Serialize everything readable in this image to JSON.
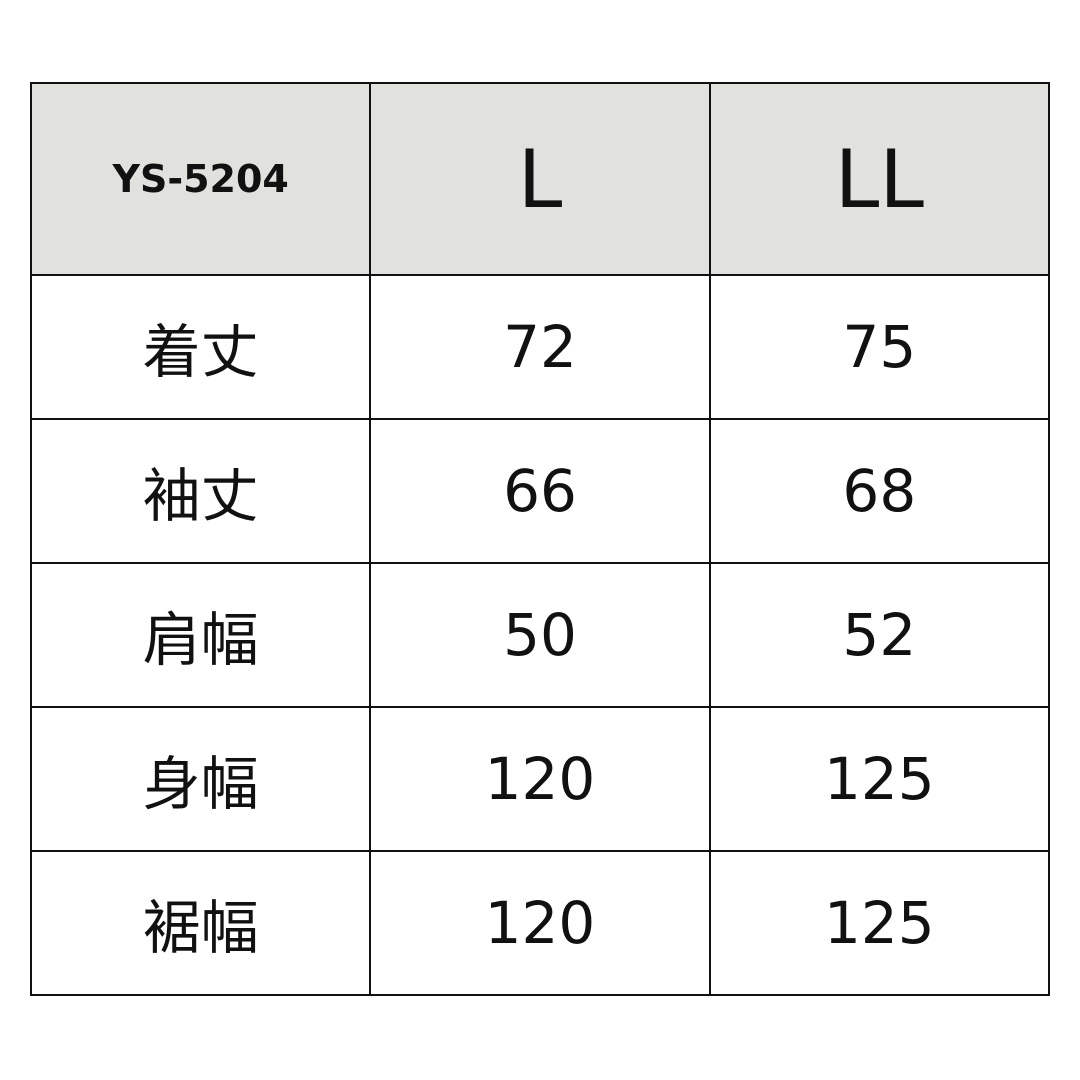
{
  "header": {
    "model": "YS-5204",
    "sizes": [
      "L",
      "LL"
    ],
    "background": "#e1e1de"
  },
  "rows": [
    {
      "label": "着丈",
      "values": [
        "72",
        "75"
      ]
    },
    {
      "label": "袖丈",
      "values": [
        "66",
        "68"
      ]
    },
    {
      "label": "肩幅",
      "values": [
        "50",
        "52"
      ]
    },
    {
      "label": "身幅",
      "values": [
        "120",
        "125"
      ]
    },
    {
      "label": "裾幅",
      "values": [
        "120",
        "125"
      ]
    }
  ]
}
